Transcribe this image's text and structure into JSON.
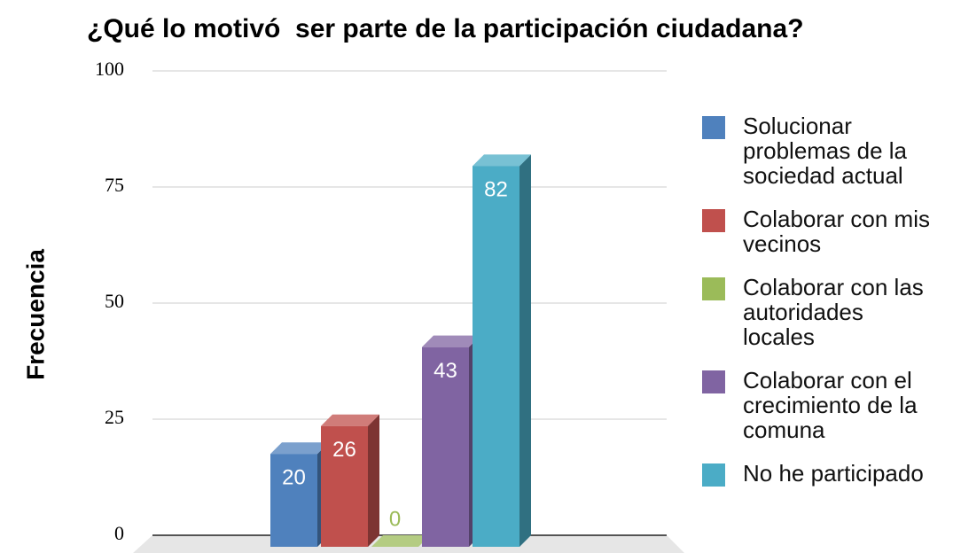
{
  "chart_data": {
    "type": "bar",
    "title": "¿Qué lo motivó  ser parte de la participación ciudadana?",
    "y_label": "Frecuencia",
    "categories": [
      null
    ],
    "series": [
      {
        "name": "Solucionar problemas de la sociedad actual",
        "color": "#4f81bd",
        "values": [
          20
        ]
      },
      {
        "name": "Colaborar con mis vecinos",
        "color": "#c0504d",
        "values": [
          26
        ]
      },
      {
        "name": "Colaborar con las autoridades locales",
        "color": "#9bbb59",
        "values": [
          0
        ]
      },
      {
        "name": "Colaborar con el crecimiento de la comuna",
        "color": "#8064a2",
        "values": [
          43
        ]
      },
      {
        "name": "No he participado",
        "color": "#4bacc6",
        "values": [
          82
        ]
      }
    ],
    "ylim": [
      0,
      100
    ],
    "yticks": [
      0,
      25,
      50,
      75,
      100
    ],
    "grid": true,
    "legend": "right"
  }
}
